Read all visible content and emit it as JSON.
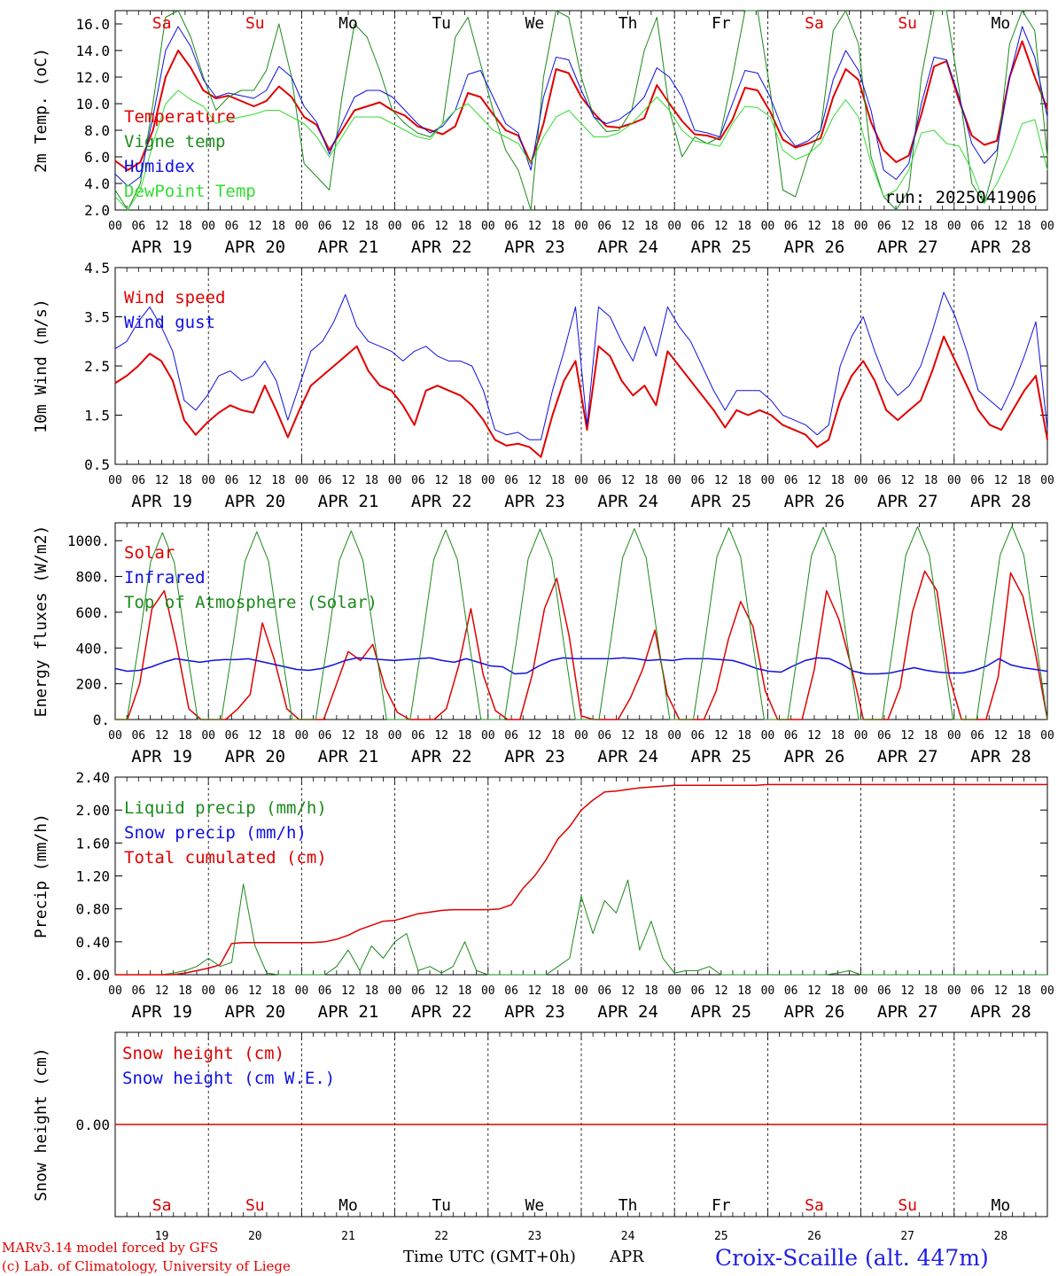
{
  "run_label": "run: 2025041906",
  "days": {
    "date_labels": [
      "APR 19",
      "APR 20",
      "APR 21",
      "APR 22",
      "APR 23",
      "APR 24",
      "APR 25",
      "APR 26",
      "APR 27",
      "APR 28"
    ],
    "day_numbers": [
      "19",
      "20",
      "21",
      "22",
      "23",
      "24",
      "25",
      "26",
      "27",
      "28"
    ],
    "dow": [
      "Sa",
      "Su",
      "Mo",
      "Tu",
      "We",
      "Th",
      "Fr",
      "Sa",
      "Su",
      "Mo"
    ],
    "dow_colors": [
      "#e00000",
      "#e00000",
      "#000000",
      "#000000",
      "#000000",
      "#000000",
      "#000000",
      "#e00000",
      "#e00000",
      "#000000"
    ],
    "hour_labels": [
      "00",
      "06",
      "12",
      "18"
    ],
    "end_hour_label": "00"
  },
  "footer": {
    "model_line": "MARv3.14 model forced by GFS",
    "lab_line": "(c) Lab. of Climatology, University of Liege",
    "x_title": "Time UTC (GMT+0h)",
    "month": "APR",
    "station": "Croix-Scaille (alt. 447m)"
  },
  "colors": {
    "red": "#e00000",
    "green": "#1a8a1a",
    "blue": "#1010e0",
    "lightgreen": "#33dd33"
  },
  "chart_data": [
    {
      "type": "line",
      "ylabel": "2m Temp. (oC)",
      "ylim": [
        2,
        17
      ],
      "yticks": [
        "2.0",
        "4.0",
        "6.0",
        "8.0",
        "10.0",
        "12.0",
        "14.0",
        "16.0"
      ],
      "ytick_values": [
        2,
        4,
        6,
        8,
        10,
        12,
        14,
        16
      ],
      "x_hours_step": 3,
      "series": [
        {
          "name": "Temperature",
          "color": "#e00000",
          "width": 2,
          "values": [
            5.7,
            5.0,
            5.6,
            8.0,
            12.0,
            14.0,
            12.7,
            11.0,
            10.4,
            10.6,
            10.2,
            9.8,
            10.2,
            11.3,
            10.5,
            9.0,
            8.4,
            6.5,
            8.0,
            9.5,
            9.8,
            10.1,
            9.5,
            9.1,
            8.3,
            8.0,
            7.7,
            8.3,
            10.8,
            10.5,
            9.2,
            8.0,
            7.6,
            5.5,
            8.5,
            12.6,
            12.3,
            10.5,
            9.3,
            8.3,
            8.2,
            8.5,
            8.9,
            11.4,
            10.0,
            8.7,
            7.7,
            7.6,
            7.3,
            8.8,
            11.2,
            11.0,
            9.4,
            7.3,
            6.7,
            7.0,
            7.4,
            10.5,
            12.6,
            11.8,
            8.6,
            6.5,
            5.6,
            6.1,
            9.2,
            12.8,
            13.2,
            10.2,
            7.6,
            6.9,
            7.2,
            12.0,
            14.7,
            12.0,
            9.6
          ]
        },
        {
          "name": "Vigne temp",
          "color": "#1a8a1a",
          "width": 1,
          "values": [
            3.5,
            1.5,
            4.0,
            10.0,
            16.5,
            17.0,
            15.0,
            12.0,
            9.5,
            10.5,
            11.0,
            11.0,
            12.5,
            16.0,
            12.0,
            5.5,
            4.5,
            3.5,
            10.5,
            16.0,
            15.0,
            12.5,
            9.5,
            8.5,
            7.8,
            7.5,
            8.5,
            15.0,
            16.5,
            13.0,
            9.5,
            6.5,
            5.0,
            2.0,
            12.0,
            17.0,
            16.5,
            12.0,
            9.0,
            7.9,
            8.0,
            9.5,
            14.0,
            16.5,
            9.5,
            6.0,
            7.5,
            7.0,
            7.5,
            12.0,
            17.0,
            17.0,
            11.0,
            3.5,
            3.0,
            6.0,
            8.0,
            15.5,
            17.0,
            14.5,
            6.0,
            3.0,
            2.0,
            3.5,
            12.0,
            17.0,
            17.0,
            11.0,
            4.0,
            2.5,
            6.0,
            14.5,
            17.0,
            15.5,
            6.0
          ]
        },
        {
          "name": "Humidex",
          "color": "#1010e0",
          "width": 1,
          "values": [
            4.7,
            3.8,
            4.5,
            9.0,
            14.0,
            15.8,
            14.3,
            11.8,
            10.5,
            10.8,
            10.6,
            10.4,
            11.0,
            12.8,
            12.0,
            9.8,
            8.6,
            6.2,
            8.5,
            10.5,
            11.0,
            11.0,
            10.5,
            9.5,
            8.5,
            7.8,
            8.3,
            9.5,
            12.2,
            12.5,
            10.5,
            8.5,
            7.8,
            5.0,
            10.5,
            13.5,
            13.3,
            11.0,
            9.0,
            8.5,
            8.8,
            9.5,
            10.5,
            12.7,
            12.0,
            10.5,
            8.0,
            7.8,
            7.5,
            10.0,
            12.5,
            12.3,
            10.5,
            8.0,
            6.8,
            7.2,
            8.0,
            11.8,
            14.0,
            12.5,
            9.5,
            5.0,
            4.3,
            5.5,
            10.0,
            13.5,
            13.3,
            10.5,
            7.0,
            5.5,
            6.5,
            12.0,
            15.8,
            13.5,
            9.0
          ]
        },
        {
          "name": "DewPoint Temp",
          "color": "#33dd33",
          "width": 1,
          "values": [
            3.0,
            2.0,
            3.5,
            7.0,
            10.0,
            11.0,
            10.3,
            9.8,
            8.5,
            8.8,
            9.0,
            9.2,
            9.5,
            9.5,
            9.0,
            8.5,
            7.5,
            6.0,
            7.5,
            9.0,
            9.0,
            9.0,
            8.5,
            8.0,
            7.5,
            7.3,
            8.5,
            9.5,
            10.0,
            9.0,
            8.0,
            7.5,
            7.0,
            5.5,
            7.5,
            9.0,
            9.5,
            8.5,
            7.5,
            7.5,
            7.8,
            8.5,
            9.5,
            10.5,
            9.5,
            8.0,
            7.2,
            7.0,
            6.8,
            8.5,
            9.8,
            9.7,
            9.0,
            6.5,
            5.8,
            6.2,
            7.0,
            9.0,
            10.3,
            9.0,
            5.5,
            3.0,
            3.5,
            5.0,
            7.8,
            8.0,
            7.0,
            6.8,
            5.0,
            2.5,
            4.0,
            6.0,
            8.5,
            8.8,
            5.0
          ]
        }
      ]
    },
    {
      "type": "line",
      "ylabel": "10m Wind (m/s)",
      "ylim": [
        0.5,
        4.5
      ],
      "yticks": [
        "0.5",
        "1.5",
        "2.5",
        "3.5",
        "4.5"
      ],
      "ytick_values": [
        0.5,
        1.5,
        2.5,
        3.5,
        4.5
      ],
      "x_hours_step": 3,
      "series": [
        {
          "name": "Wind speed",
          "color": "#e00000",
          "width": 2,
          "values": [
            2.15,
            2.3,
            2.5,
            2.75,
            2.6,
            2.2,
            1.4,
            1.1,
            1.35,
            1.55,
            1.7,
            1.6,
            1.55,
            2.1,
            1.6,
            1.05,
            1.6,
            2.1,
            2.3,
            2.5,
            2.7,
            2.9,
            2.4,
            2.1,
            2.0,
            1.7,
            1.3,
            2.0,
            2.1,
            2.0,
            1.9,
            1.7,
            1.4,
            1.0,
            0.88,
            0.92,
            0.85,
            0.65,
            1.5,
            2.2,
            2.6,
            1.2,
            2.9,
            2.7,
            2.2,
            1.9,
            2.1,
            1.7,
            2.8,
            2.5,
            2.2,
            1.9,
            1.6,
            1.25,
            1.6,
            1.5,
            1.6,
            1.5,
            1.3,
            1.2,
            1.1,
            0.85,
            1.0,
            1.8,
            2.3,
            2.6,
            2.2,
            1.6,
            1.4,
            1.6,
            1.8,
            2.4,
            3.1,
            2.6,
            2.1,
            1.6,
            1.3,
            1.2,
            1.6,
            2.0,
            2.3,
            1.0
          ]
        },
        {
          "name": "Wind gust",
          "color": "#1010e0",
          "width": 1,
          "values": [
            2.85,
            3.0,
            3.4,
            3.7,
            3.3,
            2.8,
            1.8,
            1.6,
            1.9,
            2.3,
            2.4,
            2.2,
            2.3,
            2.6,
            2.2,
            1.4,
            2.1,
            2.8,
            3.0,
            3.4,
            3.95,
            3.3,
            3.0,
            2.9,
            2.8,
            2.6,
            2.8,
            2.9,
            2.7,
            2.6,
            2.6,
            2.5,
            2.0,
            1.2,
            1.1,
            1.15,
            1.0,
            1.0,
            2.0,
            2.8,
            3.7,
            1.3,
            3.7,
            3.5,
            3.0,
            2.6,
            3.3,
            2.7,
            3.7,
            3.3,
            3.0,
            2.5,
            2.0,
            1.6,
            2.0,
            2.0,
            2.0,
            1.8,
            1.5,
            1.4,
            1.3,
            1.1,
            1.3,
            2.5,
            3.1,
            3.5,
            2.8,
            2.2,
            1.9,
            2.1,
            2.5,
            3.2,
            4.0,
            3.5,
            2.8,
            2.0,
            1.8,
            1.6,
            2.1,
            2.7,
            3.4,
            1.2
          ]
        }
      ]
    },
    {
      "type": "line",
      "ylabel": "Energy fluxes (W/m2)",
      "ylim": [
        0,
        1100
      ],
      "yticks": [
        "0.",
        "200.",
        "400.",
        "600.",
        "800.",
        "1000."
      ],
      "ytick_values": [
        0,
        200,
        400,
        600,
        800,
        1000
      ],
      "x_hours_step": 3,
      "series": [
        {
          "name": "Solar",
          "color": "#e00000",
          "width": 1.5,
          "values": [
            0,
            0,
            200,
            620,
            720,
            420,
            60,
            0,
            0,
            0,
            60,
            140,
            540,
            330,
            60,
            0,
            0,
            0,
            190,
            380,
            330,
            420,
            180,
            40,
            0,
            0,
            0,
            60,
            300,
            620,
            250,
            50,
            0,
            0,
            250,
            620,
            790,
            470,
            20,
            0,
            0,
            0,
            120,
            280,
            500,
            140,
            0,
            0,
            0,
            160,
            450,
            660,
            520,
            160,
            0,
            0,
            0,
            280,
            720,
            560,
            300,
            0,
            0,
            0,
            180,
            600,
            830,
            720,
            240,
            0,
            0,
            0,
            240,
            820,
            690,
            380,
            0
          ]
        },
        {
          "name": "Infrared",
          "color": "#1010e0",
          "width": 1.5,
          "values": [
            285,
            270,
            275,
            295,
            320,
            340,
            330,
            320,
            330,
            335,
            335,
            340,
            325,
            310,
            295,
            280,
            275,
            285,
            305,
            330,
            345,
            340,
            335,
            330,
            335,
            340,
            345,
            330,
            320,
            340,
            320,
            300,
            295,
            255,
            260,
            300,
            330,
            345,
            340,
            340,
            340,
            340,
            345,
            340,
            330,
            335,
            330,
            340,
            340,
            340,
            335,
            330,
            310,
            285,
            270,
            265,
            300,
            330,
            345,
            340,
            310,
            270,
            255,
            255,
            260,
            275,
            290,
            275,
            265,
            260,
            260,
            275,
            300,
            340,
            305,
            290,
            280,
            270
          ]
        },
        {
          "name": "Top of Atmosphere (Solar)",
          "color": "#1a8a1a",
          "width": 1,
          "values": [
            0,
            0,
            420,
            880,
            1045,
            880,
            420,
            0,
            0,
            0,
            425,
            885,
            1050,
            885,
            425,
            0,
            0,
            0,
            430,
            890,
            1055,
            890,
            430,
            0,
            0,
            0,
            430,
            895,
            1060,
            895,
            430,
            0,
            0,
            0,
            435,
            900,
            1065,
            900,
            435,
            0,
            0,
            0,
            440,
            905,
            1068,
            905,
            440,
            0,
            0,
            0,
            440,
            910,
            1072,
            910,
            440,
            0,
            0,
            0,
            445,
            915,
            1075,
            915,
            445,
            0,
            0,
            0,
            450,
            918,
            1078,
            918,
            450,
            0,
            0,
            0,
            452,
            920,
            1082,
            920,
            452,
            0
          ]
        }
      ]
    },
    {
      "type": "line",
      "ylabel": "Precip (mm/h)",
      "ylim": [
        0,
        2.4
      ],
      "yticks": [
        "0.00",
        "0.40",
        "0.80",
        "1.20",
        "1.60",
        "2.00",
        "2.40"
      ],
      "ytick_values": [
        0,
        0.4,
        0.8,
        1.2,
        1.6,
        2.0,
        2.4
      ],
      "x_hours_step": 3,
      "series": [
        {
          "name": "Liquid precip (mm/h)",
          "color": "#1a8a1a",
          "width": 1,
          "values": [
            0,
            0,
            0,
            0,
            0,
            0.02,
            0.05,
            0.1,
            0.2,
            0.1,
            0.15,
            1.1,
            0.35,
            0.02,
            0,
            0,
            0,
            0,
            0,
            0.1,
            0.3,
            0.05,
            0.35,
            0.2,
            0.4,
            0.5,
            0.05,
            0.1,
            0.02,
            0.1,
            0.4,
            0.05,
            0,
            0,
            0,
            0,
            0,
            0,
            0.1,
            0.2,
            0.95,
            0.5,
            0.9,
            0.75,
            1.15,
            0.3,
            0.65,
            0.2,
            0.02,
            0.05,
            0.05,
            0.1,
            0,
            0,
            0,
            0,
            0,
            0,
            0,
            0,
            0,
            0,
            0.02,
            0.05,
            0,
            0,
            0,
            0,
            0,
            0,
            0,
            0,
            0,
            0,
            0,
            0,
            0,
            0,
            0,
            0,
            0
          ]
        },
        {
          "name": "Snow precip (mm/h)",
          "color": "#1010e0",
          "width": 1,
          "values": []
        },
        {
          "name": "Total cumulated (cm)",
          "color": "#e00000",
          "width": 1.5,
          "values": [
            0,
            0,
            0,
            0,
            0,
            0,
            0.02,
            0.05,
            0.08,
            0.12,
            0.38,
            0.39,
            0.39,
            0.39,
            0.39,
            0.39,
            0.39,
            0.39,
            0.4,
            0.43,
            0.48,
            0.55,
            0.6,
            0.65,
            0.66,
            0.7,
            0.74,
            0.76,
            0.78,
            0.79,
            0.79,
            0.79,
            0.79,
            0.8,
            0.85,
            1.05,
            1.2,
            1.4,
            1.65,
            1.8,
            2.0,
            2.12,
            2.22,
            2.23,
            2.25,
            2.27,
            2.28,
            2.29,
            2.3,
            2.3,
            2.3,
            2.3,
            2.3,
            2.3,
            2.3,
            2.3,
            2.31,
            2.31,
            2.31,
            2.31,
            2.31,
            2.31,
            2.31,
            2.31,
            2.31,
            2.31,
            2.31,
            2.31,
            2.31,
            2.31,
            2.31,
            2.31,
            2.31,
            2.31,
            2.31,
            2.31,
            2.31,
            2.31,
            2.31,
            2.31,
            2.31
          ]
        }
      ]
    },
    {
      "type": "line",
      "ylabel": "Snow height (cm)",
      "ylim": [
        -1,
        1
      ],
      "yticks": [
        "0.00"
      ],
      "ytick_values": [
        0
      ],
      "x_hours_step": 3,
      "series": [
        {
          "name": "Snow height (cm)",
          "color": "#e00000",
          "width": 1.5,
          "values": [
            0,
            0
          ]
        },
        {
          "name": "Snow height (cm W.E.)",
          "color": "#1010e0",
          "width": 1,
          "values": []
        }
      ]
    }
  ]
}
